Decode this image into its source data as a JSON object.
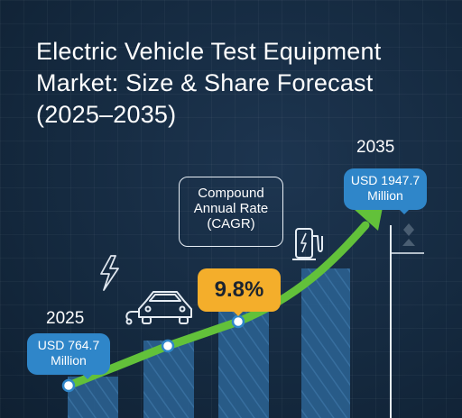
{
  "title_lines": [
    "Electric Vehicle Test Equipment",
    "Market: Size & Share Forecast",
    "(2025–2035)"
  ],
  "start": {
    "year": "2025",
    "label_lines": [
      "USD 764.7",
      "Million"
    ]
  },
  "end": {
    "year": "2035",
    "label_lines": [
      "USD 1947.7",
      "Million"
    ]
  },
  "cagr": {
    "caption_lines": [
      "Compound",
      "Annual Rate",
      "(CAGR)"
    ],
    "value": "9.8%"
  },
  "colors": {
    "background": "#152a40",
    "bar": "#2a5f8e",
    "trend": "#62c13a",
    "callout": "#2f86c9",
    "badge": "#f4ae2b"
  },
  "icons": [
    "lightning-icon",
    "electric-car-icon",
    "charging-station-icon"
  ],
  "chart_data": {
    "type": "bar",
    "categories": [
      "2025",
      "",
      "",
      "",
      "2035"
    ],
    "values": [
      764.7,
      null,
      null,
      null,
      1947.7
    ],
    "value_labels": [
      "USD 764.7 Million",
      "",
      "",
      "",
      "USD 1947.7 Million"
    ],
    "growth_rate_label": "9.8%",
    "ylim": [
      0,
      2000
    ],
    "grid": false,
    "legend": "none"
  }
}
